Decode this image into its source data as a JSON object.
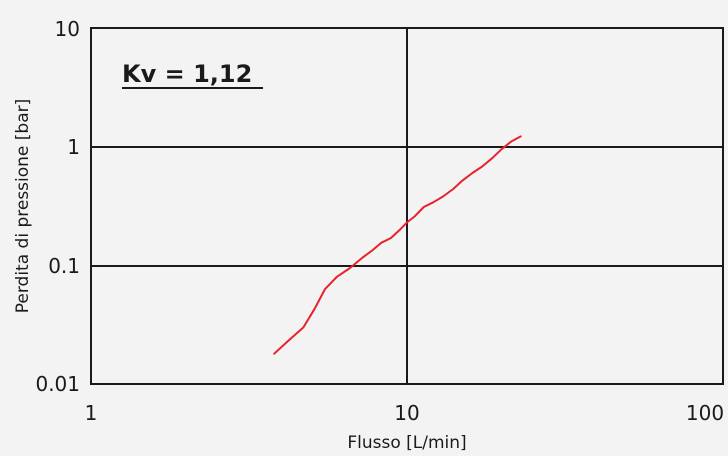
{
  "chart_data": {
    "type": "line",
    "title": "",
    "xlabel": "Flusso [L/min]",
    "ylabel": "Perdita di pressione [bar]",
    "xscale": "log",
    "yscale": "log",
    "xlim": [
      1,
      100
    ],
    "ylim": [
      0.01,
      10
    ],
    "xticks": [
      "1",
      "10",
      "100"
    ],
    "yticks": [
      "10",
      "1",
      "0.1",
      "0.01"
    ],
    "grid": true,
    "annotation": "Kv = 1,12",
    "series": [
      {
        "color": "#e8222a",
        "x": [
          3.8,
          4.2,
          4.7,
          5.1,
          5.5,
          6.0,
          6.6,
          7.2,
          7.8,
          8.3,
          8.9,
          9.5,
          10.0,
          10.6,
          11.3,
          12.1,
          13.0,
          14.0,
          15.0,
          16.1,
          17.3,
          18.6,
          19.9,
          21.3,
          22.9
        ],
        "y": [
          0.018,
          0.023,
          0.03,
          0.043,
          0.063,
          0.08,
          0.095,
          0.115,
          0.135,
          0.155,
          0.17,
          0.2,
          0.23,
          0.26,
          0.31,
          0.34,
          0.38,
          0.44,
          0.52,
          0.6,
          0.68,
          0.8,
          0.95,
          1.1,
          1.22
        ]
      }
    ]
  }
}
